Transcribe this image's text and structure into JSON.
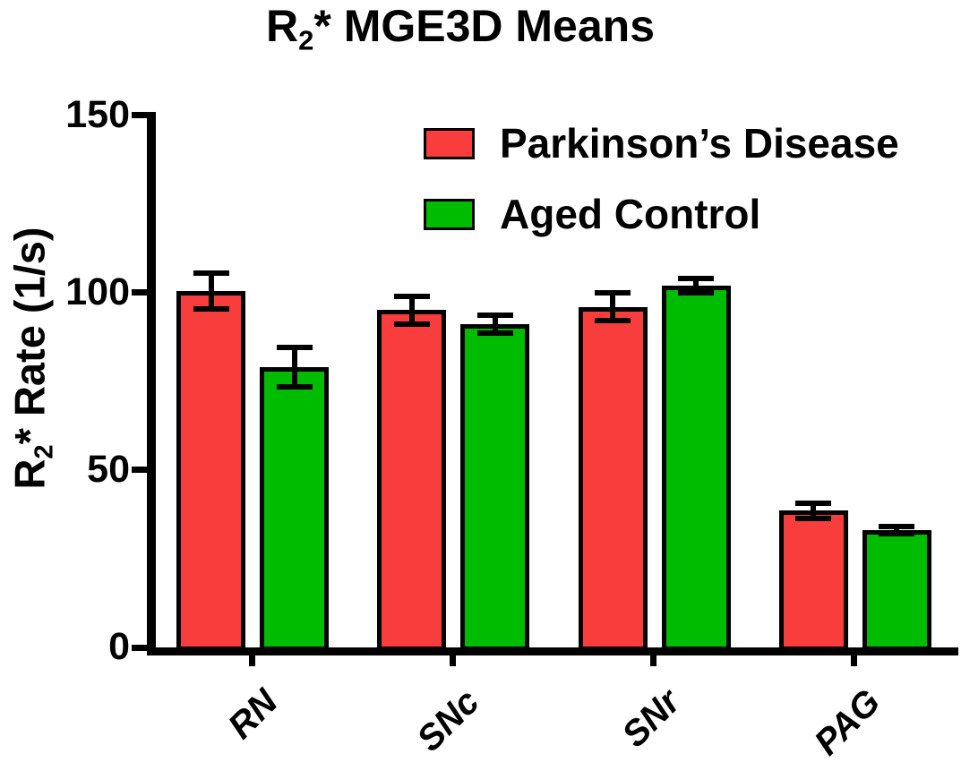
{
  "title": {
    "base": "R",
    "sub": "2",
    "rest": "* MGE3D Means"
  },
  "y_axis": {
    "label_base": "R",
    "label_sub": "2",
    "label_rest": "* Rate (1/s)"
  },
  "chart_data": {
    "type": "bar",
    "title": "R2* MGE3D Means",
    "ylabel": "R2* Rate (1/s)",
    "xlabel": "",
    "categories": [
      "RN",
      "SNc",
      "SNr",
      "PAG"
    ],
    "series": [
      {
        "name": "Parkinson’s Disease",
        "color": "#F93C3C",
        "values": [
          100.5,
          95.0,
          96.0,
          38.5
        ],
        "errors": [
          5.0,
          4.0,
          4.0,
          2.2
        ]
      },
      {
        "name": "Aged Control",
        "color": "#00BC00",
        "values": [
          79.0,
          91.0,
          102.0,
          33.0
        ],
        "errors": [
          5.5,
          2.5,
          2.0,
          1.0
        ]
      }
    ],
    "ylim": [
      0,
      150
    ],
    "yticks": [
      0,
      50,
      100,
      150
    ],
    "grid": false,
    "error_bars": true,
    "legend_position": "upper-right-inside",
    "bar_edge_color": "#000000",
    "axis_color": "#000000",
    "background": "#FFFFFF"
  }
}
